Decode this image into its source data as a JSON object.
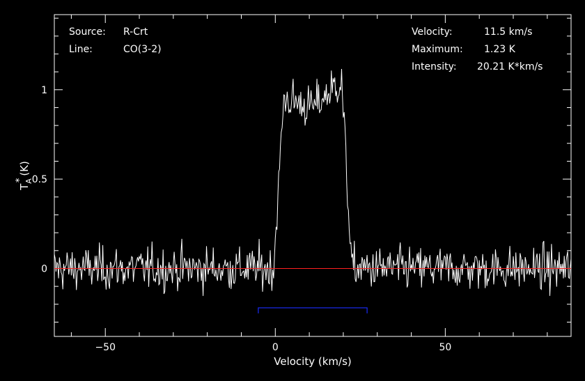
{
  "info": {
    "source_label": "Source:",
    "source_value": "R-Crt",
    "line_label": "Line:",
    "line_value": "CO(3-2)",
    "velocity_label": "Velocity:",
    "velocity_value": "11.5 km/s",
    "maximum_label": "Maximum:",
    "maximum_value": "1.23 K",
    "intensity_label": "Intensity:",
    "intensity_value": "20.21 K*km/s"
  },
  "chart_data": {
    "type": "line",
    "xlabel": "Velocity (km/s)",
    "ylabel_main": "T",
    "ylabel_sup": "*",
    "ylabel_sub": "A",
    "ylabel_unit": "(K)",
    "xlim": [
      -65,
      87
    ],
    "ylim": [
      -0.38,
      1.42
    ],
    "x_ticks": [
      -50,
      0,
      50
    ],
    "x_tick_labels": [
      "−50",
      "0",
      "50"
    ],
    "y_ticks": [
      0,
      0.5,
      1
    ],
    "y_tick_labels": [
      "0",
      "0.5",
      "1"
    ],
    "x_minor_step": 10,
    "y_minor_step": 0.1,
    "baseline": 0,
    "baseline_color": "#ff2020",
    "line_color": "#ffffff",
    "integration_window": {
      "x_start": -5,
      "x_end": 27,
      "y": -0.22,
      "color": "#1a2cff"
    },
    "series": [
      {
        "channel_width": 0.25,
        "noise_rms": 0.08,
        "profile": {
          "shape": "flat-topped",
          "rise_start": -0.5,
          "rise_end": 2.5,
          "fall_start": 19.5,
          "fall_end": 22.5,
          "plateau_start": 0.95,
          "plateau_mid": 0.9,
          "plateau_end": 1.05,
          "peak": 1.23
        }
      }
    ],
    "frame_color": "#ffffff"
  }
}
